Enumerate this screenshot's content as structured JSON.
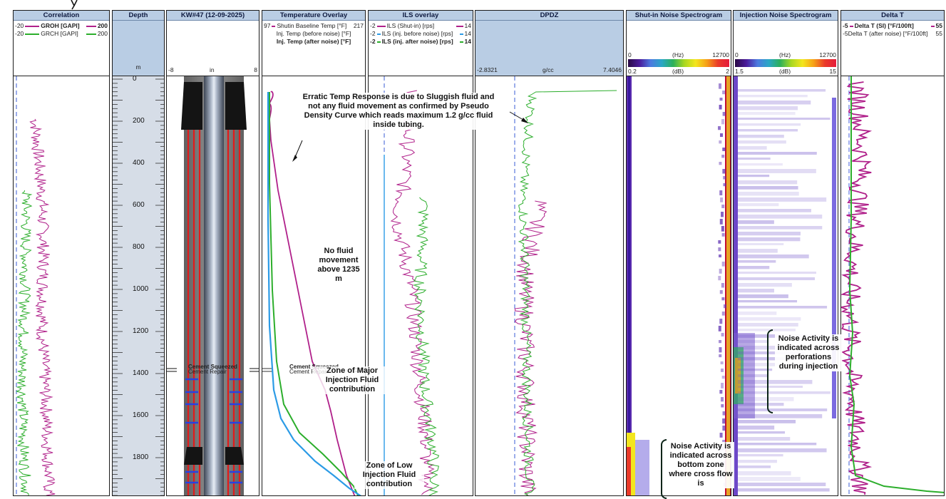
{
  "tracks": {
    "correlation": {
      "title": "Correlation",
      "curve1": {
        "left": "-20",
        "name": "GROH [GAPI]",
        "right": "200",
        "color": "#b0208a"
      },
      "curve2": {
        "left": "-20",
        "name": "GRCH [GAPI]",
        "right": "200",
        "color": "#2cae2c"
      }
    },
    "depth": {
      "title": "Depth",
      "unit": "m",
      "labels": [
        "0",
        "200",
        "400",
        "600",
        "800",
        "1000",
        "1200",
        "1400",
        "1600",
        "1800"
      ]
    },
    "well": {
      "title": "KW#47 (12-09-2025)",
      "scale_left": "-8",
      "scale_unit": "in",
      "scale_right": "8",
      "tag1": "Cement Squeezed",
      "tag2": "Cement Repair"
    },
    "temperature": {
      "title": "Temperature Overlay",
      "curve1": {
        "left": "97",
        "name": "Shutin Baseline Temp [°F]",
        "right": "217",
        "color": "#b0208a"
      },
      "curve2": {
        "name": "Inj. Temp (before noise) [°F]",
        "color": "#2c9be6"
      },
      "curve3": {
        "name": "Inj. Temp (after noise) [°F]",
        "color": "#2cae2c"
      },
      "tag1": "Cement Squeezed",
      "tag2": "Cement Repair"
    },
    "ils": {
      "title": "ILS overlay",
      "curve1": {
        "left": "-2",
        "name": "ILS (Shut-in) [rps]",
        "right": "14",
        "color": "#b0208a"
      },
      "curve2": {
        "left": "-2",
        "name": "ILS (inj. before noise) [rps]",
        "right": "14",
        "color": "#2c9be6"
      },
      "curve3": {
        "left": "-2",
        "name": "ILS (inj. after noise) [rps]",
        "right": "14",
        "color": "#2cae2c"
      }
    },
    "dpdz": {
      "title": "DPDZ",
      "scale_left": "-2.8321",
      "scale_unit": "g/cc",
      "scale_right": "7.4046"
    },
    "shutin_spec": {
      "title": "Shut-in Noise Spectrogram",
      "hz_left": "0",
      "hz_unit": "(Hz)",
      "hz_right": "12700",
      "db_left": "0.2",
      "db_unit": "(dB)",
      "db_right": "2"
    },
    "inj_spec": {
      "title": "Injection Noise Spectrogram",
      "hz_left": "0",
      "hz_unit": "(Hz)",
      "hz_right": "12700",
      "db_left": "1.5",
      "db_unit": "(dB)",
      "db_right": "15"
    },
    "delta": {
      "title": "Delta T",
      "curve1": {
        "left": "-5",
        "name": "Delta T (SI) [°F/100ft]",
        "right": "55",
        "color": "#b0208a"
      },
      "curve2": {
        "left": "-5",
        "name": "Delta T (after noise) [°F/100ft]",
        "right": "55",
        "color": "#2cae2c"
      }
    }
  },
  "annotations": {
    "erratic": "Erratic Temp Response is due to Sluggish fluid and not any fluid movement as confirmed by Pseudo Density Curve which reads maximum 1.2 g/cc fluid inside tubing.",
    "no_fluid": "No fluid movement above 1235 m",
    "major_zone": "Zone of Major Injection Fluid contribution",
    "low_zone": "Zone of Low Injection Fluid contribution",
    "noise_perf": "Noise Activity is indicated across perforations during injection",
    "noise_bottom": "Noise Activity is indicated across bottom zone where cross flow is"
  },
  "colors": {
    "header_blue": "#b9cde4",
    "magenta": "#b0208a",
    "green": "#2cae2c",
    "blue": "#2c9be6",
    "casing_red": "#e21b1b"
  }
}
